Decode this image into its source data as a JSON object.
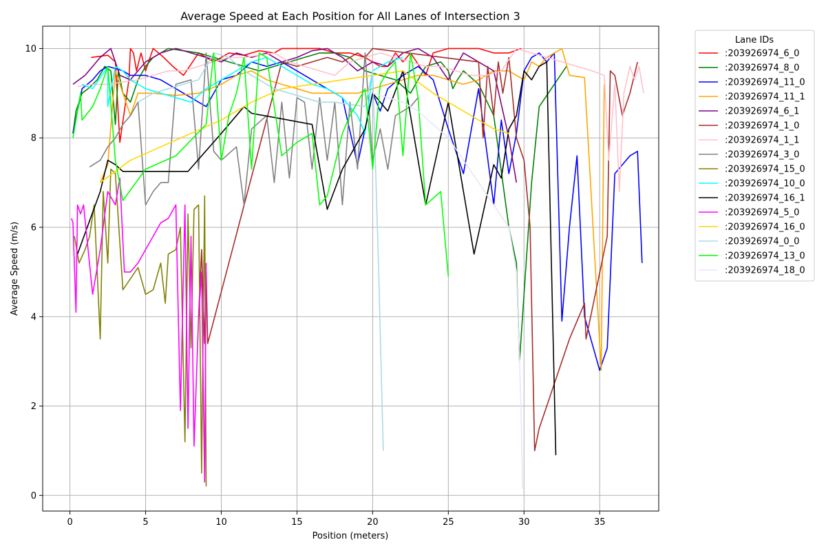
{
  "chart_data": {
    "type": "line",
    "title": "Average Speed at Each Position for All Lanes of Intersection 3",
    "xlabel": "Position (meters)",
    "ylabel": "Average Speed (m/s)",
    "xlim": [
      -1.8,
      38.9
    ],
    "ylim": [
      -0.35,
      10.5
    ],
    "xticks": [
      0,
      5,
      10,
      15,
      20,
      25,
      30,
      35
    ],
    "yticks": [
      0,
      2,
      4,
      6,
      8,
      10
    ],
    "grid": true,
    "legend": {
      "title": "Lane IDs",
      "position": "outside-top-right"
    },
    "series": [
      {
        "name": ":203926974_6_0",
        "color": "#ff0000",
        "x": [
          1.4,
          2.5,
          3.0,
          3.3,
          3.6,
          3.9,
          4.0,
          4.2,
          4.4,
          4.7,
          5.0,
          5.5,
          6.2,
          6.8,
          7.5,
          8.5,
          9.5,
          10.5,
          11.5,
          12.0,
          12.5,
          13.5,
          14.0,
          14.5,
          15.5,
          16.5,
          17.5,
          18.5,
          19.5,
          20.5,
          21.0,
          21.5,
          22.0,
          22.5,
          23.5,
          24.0,
          25.0,
          26.0,
          27.0,
          28.0,
          29.0,
          29.8
        ],
        "y": [
          9.8,
          9.85,
          9.7,
          7.9,
          8.6,
          9.3,
          10.0,
          9.9,
          9.5,
          9.9,
          9.5,
          10.0,
          9.8,
          9.6,
          9.4,
          9.9,
          9.7,
          9.9,
          9.85,
          9.9,
          9.95,
          9.9,
          10.0,
          10.0,
          10.0,
          10.0,
          9.9,
          9.9,
          9.8,
          9.6,
          9.6,
          9.9,
          9.7,
          9.9,
          9.4,
          9.9,
          10.0,
          10.0,
          10.0,
          9.9,
          9.9,
          10.0
        ]
      },
      {
        "name": ":203926974_8_0",
        "color": "#008000",
        "x": [
          0.2,
          0.4,
          0.8,
          1.2,
          1.8,
          2.3,
          2.7,
          3.0,
          3.2,
          3.5,
          4.0,
          4.5,
          5.0,
          5.5,
          6.0,
          6.5,
          7.5,
          8.5,
          9.5,
          10.5,
          11.5,
          12.5,
          13.5,
          14.5,
          15.5,
          16.5,
          17.5,
          18.5,
          19.5,
          20.5,
          21.5,
          22.5,
          23.5,
          24.5,
          25.0,
          25.3,
          25.6,
          26.0,
          27.0,
          28.0,
          29.0,
          29.5,
          29.7,
          30.0,
          30.5,
          31.0,
          32.0,
          32.8
        ],
        "y": [
          8.1,
          8.6,
          9.0,
          9.1,
          9.3,
          9.6,
          9.5,
          8.3,
          9.5,
          9.0,
          8.8,
          9.3,
          9.6,
          9.8,
          9.9,
          10.0,
          9.95,
          9.9,
          9.8,
          9.7,
          9.6,
          9.5,
          9.6,
          9.7,
          9.8,
          9.9,
          9.9,
          9.8,
          9.5,
          9.4,
          9.3,
          9.0,
          9.6,
          9.7,
          9.5,
          9.1,
          9.3,
          9.5,
          9.2,
          8.5,
          6.0,
          5.2,
          3.0,
          4.5,
          7.0,
          8.7,
          9.2,
          9.6
        ]
      },
      {
        "name": ":203926974_11_0",
        "color": "#0000ff",
        "x": [
          0.2,
          0.5,
          0.8,
          1.5,
          2.0,
          2.5,
          3.0,
          3.5,
          4.0,
          5.0,
          6.0,
          7.0,
          8.0,
          9.0,
          10.0,
          11.0,
          12.0,
          13.0,
          14.0,
          15.0,
          16.0,
          17.0,
          18.0,
          19.0,
          20.0,
          20.5,
          21.0,
          22.0,
          23.0,
          24.0,
          25.0,
          26.0,
          27.0,
          28.0,
          28.5,
          29.0,
          29.5,
          30.0,
          30.5,
          31.0,
          31.5,
          32.0,
          32.5,
          33.0,
          33.5,
          34.0,
          35.0,
          35.5,
          36.0,
          36.5,
          37.0,
          37.5,
          37.8
        ],
        "y": [
          8.1,
          8.6,
          9.1,
          9.3,
          9.5,
          9.6,
          9.55,
          9.5,
          9.4,
          9.4,
          9.3,
          9.1,
          8.9,
          8.7,
          9.3,
          9.4,
          9.7,
          9.6,
          9.7,
          9.5,
          9.3,
          9.1,
          8.9,
          7.4,
          9.0,
          8.6,
          9.1,
          9.4,
          9.6,
          9.3,
          8.2,
          7.2,
          9.1,
          6.5,
          8.4,
          7.2,
          8.1,
          9.5,
          9.8,
          9.9,
          9.7,
          9.9,
          3.9,
          6.0,
          7.6,
          4.0,
          2.8,
          3.3,
          7.2,
          7.4,
          7.6,
          7.7,
          5.2
        ]
      },
      {
        "name": ":203926974_11_1",
        "color": "#ffa500",
        "x": [
          2.0,
          2.5,
          3.0,
          3.5,
          4.0,
          4.5,
          5.5,
          7.0,
          8.5,
          10.0,
          11.0,
          12.0,
          13.0,
          14.0,
          15.0,
          16.0,
          17.0,
          18.0,
          19.0,
          20.0,
          21.0,
          22.0,
          23.0,
          24.0,
          25.0,
          26.0,
          27.0,
          28.0,
          29.0,
          29.5,
          30.0,
          30.5,
          31.0,
          31.5,
          32.0,
          32.5,
          33.0,
          34.0,
          35.1,
          35.3
        ],
        "y": [
          7.0,
          7.4,
          9.5,
          9.0,
          8.5,
          9.0,
          9.0,
          8.95,
          9.0,
          9.2,
          9.4,
          9.5,
          9.3,
          9.2,
          9.1,
          9.0,
          9.0,
          9.0,
          9.0,
          9.1,
          9.2,
          9.3,
          9.4,
          9.4,
          9.3,
          9.2,
          9.3,
          9.5,
          9.5,
          9.4,
          9.3,
          9.7,
          9.6,
          9.8,
          9.9,
          10.0,
          9.4,
          9.35,
          2.8,
          9.2
        ]
      },
      {
        "name": ":203926974_6_1",
        "color": "#800080",
        "x": [
          0.2,
          1.0,
          2.0,
          2.7,
          3.3,
          4.0,
          5.0,
          6.0,
          7.0,
          8.0,
          9.0,
          10.0,
          11.0,
          12.0,
          13.0,
          14.0,
          15.0,
          16.0,
          17.0,
          18.0,
          19.0,
          20.0,
          21.0,
          22.0,
          23.0,
          24.0,
          25.0,
          26.0,
          27.0,
          28.0,
          29.0,
          29.5
        ],
        "y": [
          9.2,
          9.4,
          9.8,
          10.0,
          9.4,
          9.3,
          9.7,
          9.9,
          10.0,
          9.9,
          9.8,
          9.7,
          9.9,
          9.8,
          9.9,
          9.7,
          9.8,
          9.95,
          10.0,
          9.8,
          9.5,
          9.7,
          9.6,
          9.9,
          10.0,
          9.8,
          9.3,
          9.9,
          9.7,
          9.5,
          8.0,
          7.0
        ]
      },
      {
        "name": ":203926974_1_0",
        "color": "#a52a2a",
        "x": [
          8.5,
          8.7,
          8.9,
          9.0,
          9.1,
          14.0,
          15.0,
          16.0,
          17.0,
          18.0,
          19.0,
          19.5,
          20.0,
          27.0,
          27.3,
          27.6,
          28.0,
          28.3,
          28.6,
          29.0,
          29.5,
          30.0,
          30.4,
          30.7,
          31.0,
          32.0,
          33.0,
          34.0,
          34.1,
          35.5,
          35.7,
          36.0,
          36.5,
          37.0,
          37.5
        ],
        "y": [
          4.0,
          5.5,
          3.4,
          5.0,
          3.4,
          9.7,
          9.6,
          9.7,
          9.8,
          9.7,
          9.9,
          9.8,
          10.0,
          9.7,
          8.0,
          9.6,
          8.5,
          9.7,
          9.0,
          9.8,
          8.0,
          7.5,
          6.0,
          1.0,
          1.5,
          2.5,
          3.5,
          4.3,
          3.5,
          5.8,
          9.5,
          9.4,
          8.5,
          9.0,
          9.7
        ]
      },
      {
        "name": ":203926974_1_1",
        "color": "#ffc0cb",
        "x": [
          0.5,
          1.5,
          2.5,
          3.5,
          4.5,
          5.5,
          6.5,
          7.5,
          8.5,
          9.5,
          10.5,
          11.5,
          12.5,
          13.5,
          14.5,
          15.5,
          16.5,
          17.5,
          18.5,
          19.5,
          20.5,
          21.5,
          22.5,
          23.5,
          24.5,
          25.5,
          26.5,
          27.5,
          28.5,
          29.5,
          30.5,
          31.5,
          32.5,
          33.5,
          34.5,
          35.3,
          35.6,
          36.0,
          36.3,
          36.6,
          37.0,
          37.3,
          37.6,
          37.9
        ],
        "y": [
          9.15,
          9.2,
          9.2,
          9.25,
          9.3,
          9.4,
          9.5,
          9.5,
          9.6,
          9.7,
          9.8,
          9.8,
          9.85,
          9.9,
          9.7,
          9.6,
          9.5,
          9.4,
          9.7,
          9.8,
          9.9,
          9.8,
          9.7,
          9.6,
          9.6,
          9.5,
          9.4,
          9.4,
          9.5,
          10.0,
          9.9,
          9.8,
          9.7,
          9.6,
          9.5,
          9.4,
          7.5,
          9.2,
          6.8,
          9.0,
          9.6,
          9.3,
          9.6,
          9.0
        ]
      },
      {
        "name": ":203926974_3_0",
        "color": "#808080",
        "x": [
          1.3,
          2.0,
          2.5,
          3.0,
          3.5,
          4.0,
          4.5,
          5.0,
          5.5,
          6.0,
          6.5,
          7.0,
          8.0,
          8.5,
          9.0,
          9.5,
          10.0,
          11.0,
          11.5,
          12.0,
          13.0,
          13.5,
          14.0,
          14.5,
          15.0,
          15.5,
          16.0,
          16.5,
          17.0,
          17.5,
          18.0,
          18.5,
          19.0,
          19.5,
          20.0,
          20.5,
          21.0,
          21.5,
          22.0,
          22.5,
          23.0
        ],
        "y": [
          7.35,
          7.5,
          7.8,
          8.0,
          8.3,
          8.5,
          8.8,
          6.5,
          6.8,
          7.0,
          7.0,
          9.2,
          9.3,
          7.3,
          9.9,
          7.7,
          7.5,
          7.8,
          6.5,
          8.2,
          8.5,
          7.0,
          8.8,
          7.1,
          8.9,
          8.8,
          7.3,
          8.9,
          7.5,
          8.8,
          6.5,
          8.8,
          7.3,
          9.9,
          7.5,
          8.2,
          7.3,
          8.5,
          8.6,
          8.7,
          8.9
        ]
      },
      {
        "name": ":203926974_15_0",
        "color": "#808000",
        "x": [
          0.3,
          0.6,
          1.0,
          1.3,
          1.6,
          2.0,
          2.2,
          2.5,
          2.7,
          3.0,
          3.5,
          4.5,
          5.0,
          5.5,
          6.0,
          6.3,
          6.5,
          7.0,
          7.3,
          7.6,
          7.8,
          8.0,
          8.2,
          8.5,
          8.7,
          8.9,
          9.0
        ],
        "y": [
          5.8,
          5.2,
          5.5,
          5.8,
          6.5,
          3.5,
          6.8,
          5.2,
          7.3,
          7.2,
          4.6,
          5.1,
          4.5,
          4.6,
          5.2,
          4.3,
          5.4,
          5.5,
          6.0,
          1.2,
          6.3,
          3.3,
          6.4,
          6.5,
          0.5,
          6.7,
          0.2
        ]
      },
      {
        "name": ":203926974_10_0",
        "color": "#00ffff",
        "x": [
          0.8,
          1.5,
          2.5,
          2.5,
          3.0,
          3.5,
          4.0,
          5.0,
          6.0,
          7.0,
          8.0,
          9.0,
          10.0,
          11.0,
          12.0,
          13.0,
          14.0,
          15.0,
          16.0,
          17.0,
          18.0,
          19.0,
          19.5,
          20.0,
          21.0,
          22.0
        ],
        "y": [
          9.2,
          9.1,
          9.6,
          8.7,
          9.6,
          9.5,
          9.3,
          9.1,
          9.0,
          8.9,
          8.8,
          9.1,
          9.3,
          9.5,
          9.7,
          9.8,
          9.6,
          9.4,
          9.2,
          9.1,
          8.9,
          8.5,
          8.1,
          9.5,
          9.7,
          9.8
        ]
      },
      {
        "name": ":203926974_16_1",
        "color": "#000000",
        "x": [
          0.5,
          2.0,
          2.5,
          3.0,
          3.5,
          5.0,
          7.8,
          10.0,
          11.5,
          12.0,
          16.0,
          17.0,
          18.0,
          19.5,
          20.0,
          21.0,
          22.0,
          23.5,
          25.0,
          26.7,
          28.0,
          28.5,
          29.0,
          29.5,
          30.0,
          30.5,
          31.0,
          31.5,
          32.1
        ],
        "y": [
          5.4,
          6.8,
          7.5,
          7.4,
          7.25,
          7.25,
          7.25,
          8.1,
          8.7,
          8.55,
          8.3,
          6.4,
          7.3,
          8.2,
          9.0,
          8.6,
          9.5,
          6.5,
          8.8,
          5.4,
          7.4,
          7.1,
          8.2,
          8.5,
          9.5,
          9.3,
          9.6,
          9.7,
          0.9
        ]
      },
      {
        "name": ":203926974_5_0",
        "color": "#ff00ff",
        "x": [
          0.1,
          0.2,
          0.4,
          0.5,
          0.7,
          0.9,
          1.2,
          1.5,
          2.0,
          2.5,
          3.0,
          3.3,
          3.6,
          4.0,
          4.5,
          5.0,
          5.5,
          6.0,
          6.5,
          7.0,
          7.3,
          7.6,
          7.8,
          8.0,
          8.2,
          8.5,
          8.7,
          8.9,
          9.0
        ],
        "y": [
          6.2,
          6.1,
          4.1,
          6.5,
          6.3,
          6.5,
          5.5,
          4.5,
          5.5,
          6.8,
          6.5,
          7.1,
          5.0,
          5.0,
          5.2,
          5.5,
          5.8,
          6.1,
          6.2,
          6.5,
          1.9,
          6.5,
          1.5,
          5.8,
          1.1,
          4.0,
          5.0,
          0.3,
          5.2
        ]
      },
      {
        "name": ":203926974_16_0",
        "color": "#ffd700",
        "x": [
          2.0,
          4.0,
          6.0,
          8.0,
          10.0,
          12.0,
          14.0,
          16.0,
          18.0,
          20.0,
          22.0,
          24.0,
          26.0,
          28.0,
          29.0
        ],
        "y": [
          7.0,
          7.5,
          7.8,
          8.1,
          8.4,
          8.8,
          9.1,
          9.2,
          9.3,
          9.4,
          9.5,
          9.0,
          8.6,
          8.2,
          8.1
        ]
      },
      {
        "name": ":203926974_0_0",
        "color": "#add8e6",
        "x": [
          4.5,
          5.5,
          6.5,
          7.5,
          8.5,
          9.5,
          10.5,
          11.5,
          12.5,
          13.5,
          14.5,
          15.5,
          16.5,
          17.5,
          18.5,
          19.5,
          20.0,
          20.4,
          20.7
        ],
        "y": [
          8.8,
          9.0,
          9.1,
          9.2,
          9.3,
          9.9,
          9.8,
          9.5,
          9.3,
          9.1,
          9.0,
          8.9,
          8.8,
          8.8,
          8.75,
          8.7,
          9.5,
          5.0,
          1.0
        ]
      },
      {
        "name": ":203926974_13_0",
        "color": "#00ff00",
        "x": [
          0.2,
          0.7,
          0.8,
          1.5,
          2.0,
          2.5,
          3.0,
          3.5,
          5.0,
          7.0,
          9.0,
          9.5,
          10.0,
          10.5,
          11.0,
          11.5,
          12.0,
          12.5,
          13.0,
          14.0,
          15.0,
          16.0,
          16.5,
          17.0,
          18.0,
          18.5,
          19.0,
          19.5,
          20.0,
          20.5,
          21.0,
          21.5,
          22.0,
          22.5,
          23.0,
          23.5,
          24.5,
          25.0
        ],
        "y": [
          8.0,
          9.0,
          8.4,
          8.7,
          9.1,
          9.6,
          7.5,
          6.6,
          7.3,
          7.6,
          8.3,
          9.9,
          7.5,
          8.5,
          9.0,
          9.8,
          7.3,
          9.9,
          9.8,
          7.6,
          7.9,
          8.1,
          6.5,
          6.7,
          8.1,
          8.5,
          8.8,
          9.1,
          7.3,
          9.2,
          9.5,
          9.7,
          7.6,
          9.9,
          8.9,
          6.5,
          6.8,
          4.9
        ]
      },
      {
        "name": ":203926974_18_0",
        "color": "#e6e6fa",
        "x": [
          20.0,
          21.0,
          22.0,
          23.0,
          24.0,
          25.0,
          26.0,
          27.0,
          28.0,
          29.0,
          29.5,
          29.8,
          29.9
        ],
        "y": [
          9.0,
          8.9,
          8.8,
          8.6,
          8.3,
          8.0,
          7.5,
          7.0,
          6.5,
          6.0,
          5.0,
          2.0,
          0.15
        ]
      }
    ]
  }
}
